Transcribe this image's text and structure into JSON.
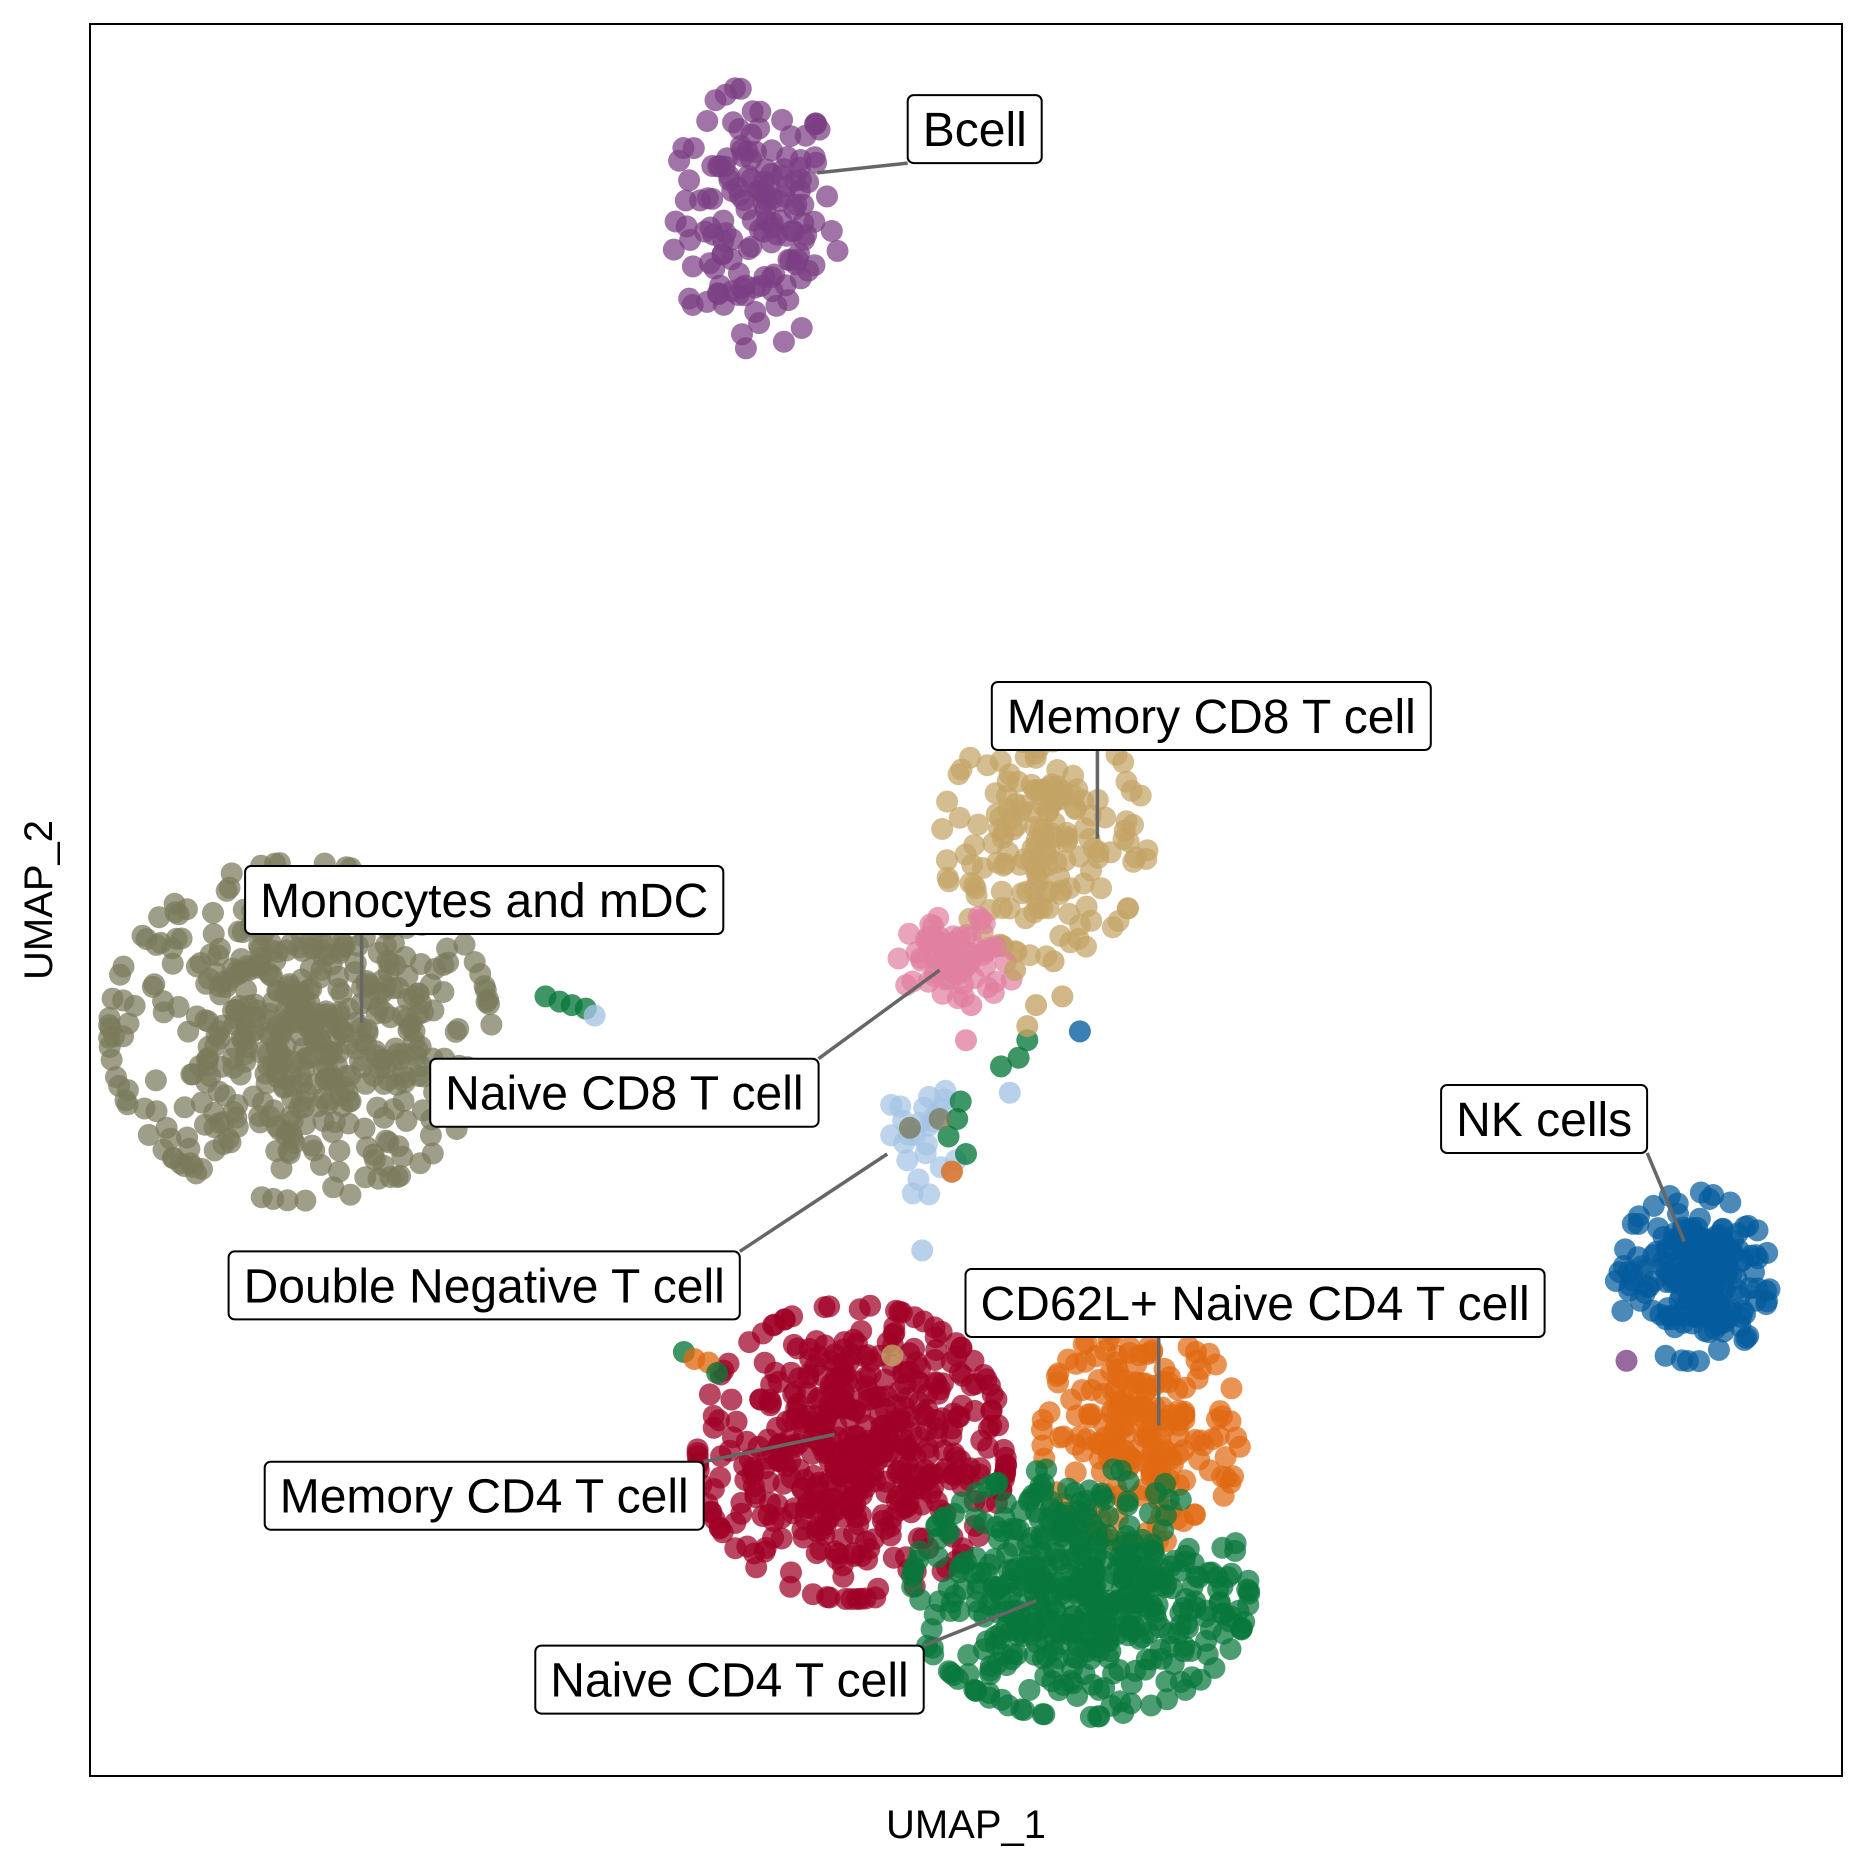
{
  "chart_data": {
    "type": "scatter",
    "xlabel": "UMAP_1",
    "ylabel": "UMAP_2",
    "xlim": [
      0,
      100
    ],
    "ylim": [
      0,
      100
    ],
    "grid": false,
    "legend": "none (on-plot labels)",
    "clusters": [
      {
        "name": "Bcell",
        "color": "#7B3F84",
        "center": [
          38.0,
          89.0
        ],
        "spread": [
          2.3,
          3.6
        ],
        "n": 150,
        "label_pos": [
          50.5,
          94.0
        ],
        "anchor": [
          41.5,
          91.5
        ]
      },
      {
        "name": "Memory CD8 T cell",
        "color": "#C4A365",
        "center": [
          54.5,
          53.5
        ],
        "spread": [
          2.8,
          3.2
        ],
        "n": 180,
        "label_pos": [
          64.0,
          60.5
        ],
        "anchor": [
          57.5,
          53.5
        ]
      },
      {
        "name": "Monocytes and mDC",
        "color": "#7A7A5C",
        "center": [
          12.0,
          42.5
        ],
        "spread": [
          5.2,
          4.6
        ],
        "n": 520,
        "label_pos": [
          22.5,
          50.0
        ],
        "anchor": [
          15.5,
          43.0
        ]
      },
      {
        "name": "Naive CD8 T cell",
        "color": "#E07FA0",
        "center": [
          49.5,
          46.5
        ],
        "spread": [
          1.6,
          1.3
        ],
        "n": 70,
        "label_pos": [
          30.5,
          39.0
        ],
        "anchor": [
          48.5,
          46.0
        ]
      },
      {
        "name": "Double Negative T cell",
        "color": "#A4C3E4",
        "center": [
          47.5,
          36.5
        ],
        "spread": [
          1.0,
          1.6
        ],
        "n": 25,
        "label_pos": [
          22.5,
          28.0
        ],
        "anchor": [
          45.5,
          35.5
        ]
      },
      {
        "name": "CD62L+ Naive CD4 T cell",
        "color": "#E06A12",
        "center": [
          60.0,
          19.5
        ],
        "spread": [
          2.7,
          3.0
        ],
        "n": 220,
        "label_pos": [
          66.5,
          27.0
        ],
        "anchor": [
          61.0,
          20.0
        ]
      },
      {
        "name": "Memory CD4 T cell",
        "color": "#A00026",
        "center": [
          43.5,
          18.5
        ],
        "spread": [
          4.2,
          4.0
        ],
        "n": 500,
        "label_pos": [
          22.5,
          16.0
        ],
        "anchor": [
          42.5,
          19.5
        ]
      },
      {
        "name": "Naive CD4 T cell",
        "color": "#08773B",
        "center": [
          56.5,
          10.5
        ],
        "spread": [
          4.6,
          3.4
        ],
        "n": 480,
        "label_pos": [
          36.5,
          5.5
        ],
        "anchor": [
          54.0,
          10.0
        ]
      },
      {
        "name": "NK cells",
        "color": "#045C9C",
        "center": [
          91.5,
          28.5
        ],
        "spread": [
          2.1,
          2.3
        ],
        "n": 200,
        "label_pos": [
          83.0,
          37.5
        ],
        "anchor": [
          91.0,
          30.5
        ]
      }
    ],
    "extra_points": [
      {
        "x": 26.0,
        "y": 44.5,
        "c": "#08773B"
      },
      {
        "x": 26.8,
        "y": 44.2,
        "c": "#08773B"
      },
      {
        "x": 27.5,
        "y": 44.0,
        "c": "#08773B"
      },
      {
        "x": 28.3,
        "y": 43.8,
        "c": "#08773B"
      },
      {
        "x": 28.8,
        "y": 43.4,
        "c": "#A4C3E4"
      },
      {
        "x": 52.0,
        "y": 40.5,
        "c": "#08773B"
      },
      {
        "x": 53.0,
        "y": 41.0,
        "c": "#08773B"
      },
      {
        "x": 53.5,
        "y": 42.0,
        "c": "#08773B"
      },
      {
        "x": 56.5,
        "y": 42.5,
        "c": "#045C9C"
      },
      {
        "x": 52.5,
        "y": 39.0,
        "c": "#A4C3E4"
      },
      {
        "x": 49.0,
        "y": 36.5,
        "c": "#08773B"
      },
      {
        "x": 49.5,
        "y": 37.5,
        "c": "#08773B"
      },
      {
        "x": 50.0,
        "y": 35.5,
        "c": "#08773B"
      },
      {
        "x": 49.7,
        "y": 38.5,
        "c": "#08773B"
      },
      {
        "x": 49.2,
        "y": 34.5,
        "c": "#E06A12"
      },
      {
        "x": 47.5,
        "y": 30.0,
        "c": "#A4C3E4"
      },
      {
        "x": 46.2,
        "y": 26.5,
        "c": "#A00026"
      },
      {
        "x": 45.8,
        "y": 24.0,
        "c": "#C4A365"
      },
      {
        "x": 33.9,
        "y": 24.2,
        "c": "#08773B"
      },
      {
        "x": 34.5,
        "y": 23.8,
        "c": "#E06A12"
      },
      {
        "x": 35.3,
        "y": 23.6,
        "c": "#E06A12"
      },
      {
        "x": 35.8,
        "y": 23.0,
        "c": "#08773B"
      },
      {
        "x": 50.0,
        "y": 42.0,
        "c": "#E07FA0"
      },
      {
        "x": 50.3,
        "y": 44.0,
        "c": "#E07FA0"
      },
      {
        "x": 46.8,
        "y": 37.0,
        "c": "#7A7A5C"
      },
      {
        "x": 48.5,
        "y": 37.5,
        "c": "#7A7A5C"
      },
      {
        "x": 52.8,
        "y": 46.0,
        "c": "#C4A365"
      },
      {
        "x": 54.0,
        "y": 44.0,
        "c": "#C4A365"
      },
      {
        "x": 55.0,
        "y": 46.5,
        "c": "#C4A365"
      },
      {
        "x": 53.5,
        "y": 42.8,
        "c": "#C4A365"
      },
      {
        "x": 55.5,
        "y": 44.5,
        "c": "#C4A365"
      },
      {
        "x": 87.7,
        "y": 23.7,
        "c": "#7B3F84"
      }
    ]
  }
}
